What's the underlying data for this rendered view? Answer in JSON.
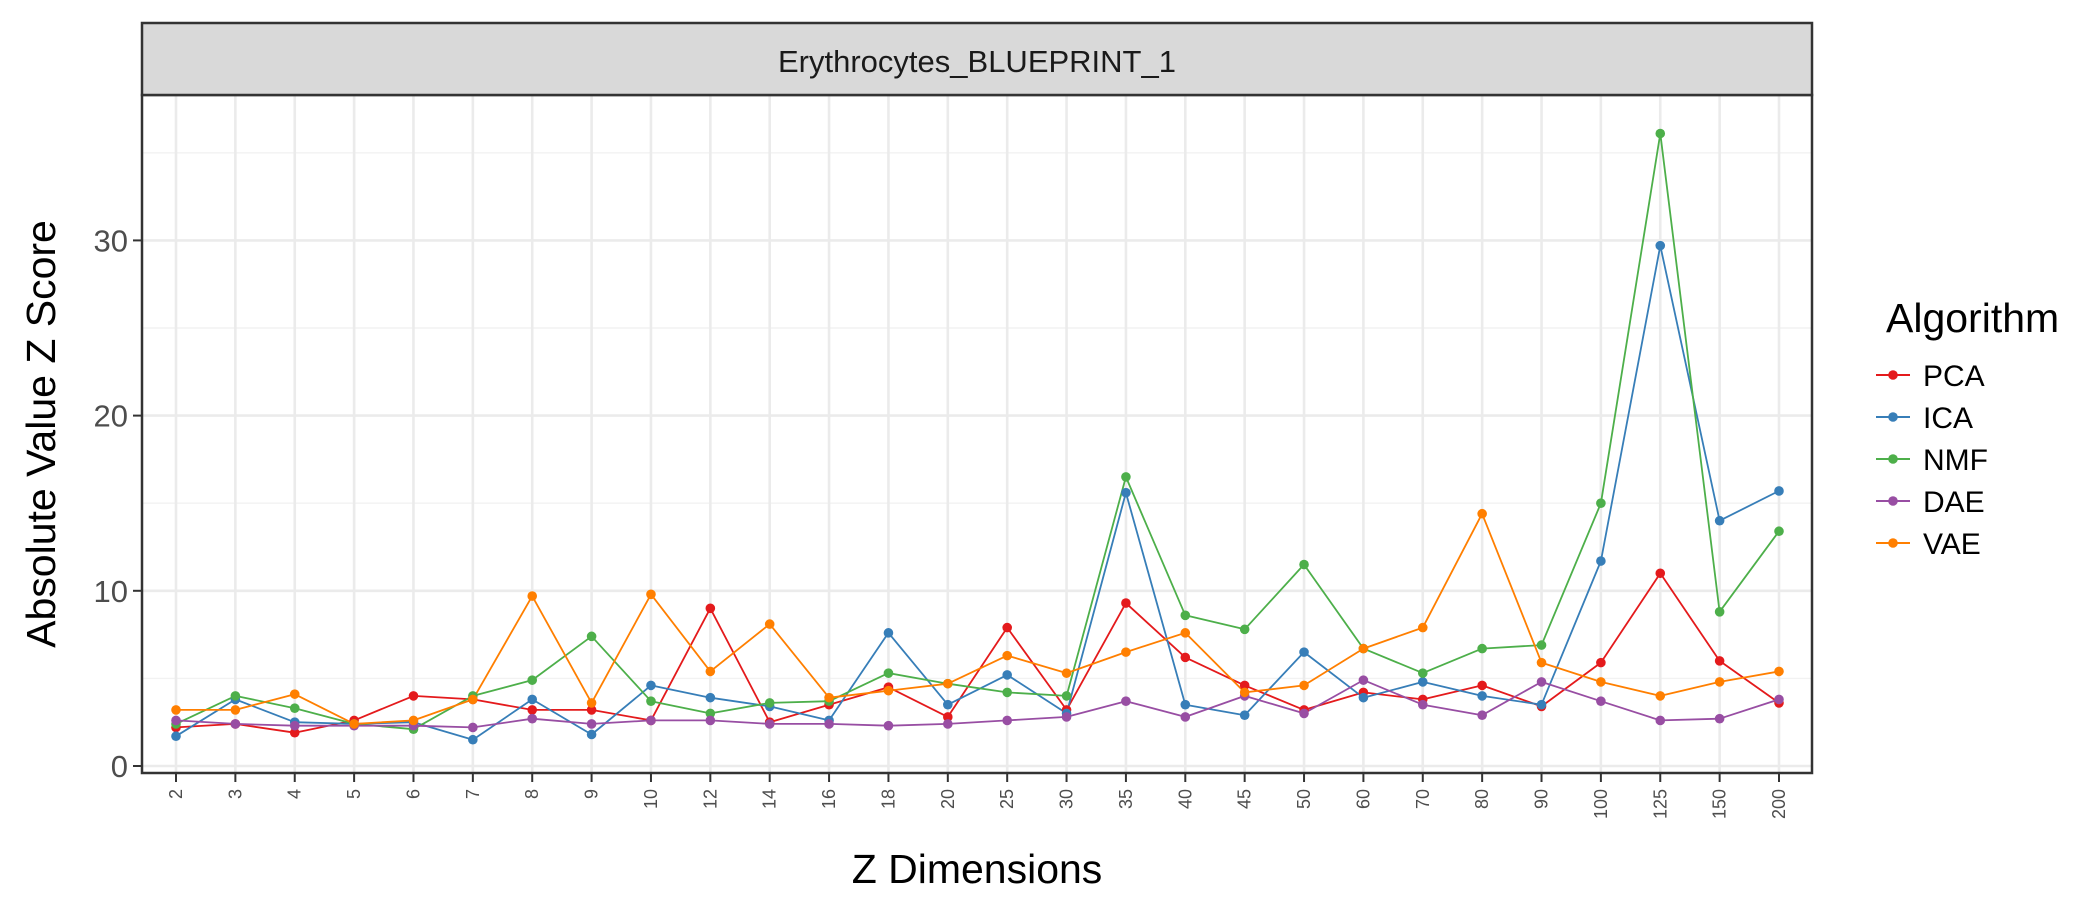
{
  "chart_data": {
    "type": "line",
    "title": "Erythrocytes_BLUEPRINT_1",
    "xlabel": "Z Dimensions",
    "ylabel": "Absolute Value Z Score",
    "categories": [
      "2",
      "3",
      "4",
      "5",
      "6",
      "7",
      "8",
      "9",
      "10",
      "12",
      "14",
      "16",
      "18",
      "20",
      "25",
      "30",
      "35",
      "40",
      "45",
      "50",
      "60",
      "70",
      "80",
      "90",
      "100",
      "125",
      "150",
      "200"
    ],
    "ylim": [
      -0.4,
      38.3
    ],
    "yticks": [
      0,
      10,
      20,
      30
    ],
    "grid": true,
    "legend": {
      "title": "Algorithm",
      "placement": "right"
    },
    "series": [
      {
        "name": "PCA",
        "color": "#E41A1C",
        "values": [
          2.2,
          2.4,
          1.9,
          2.6,
          4.0,
          3.8,
          3.2,
          3.2,
          2.6,
          9.0,
          2.5,
          3.5,
          4.5,
          2.8,
          7.9,
          3.2,
          9.3,
          6.2,
          4.6,
          3.2,
          4.2,
          3.8,
          4.6,
          3.4,
          5.9,
          11.0,
          6.0,
          3.6
        ]
      },
      {
        "name": "ICA",
        "color": "#377EB8",
        "values": [
          1.7,
          3.8,
          2.5,
          2.4,
          2.5,
          1.5,
          3.8,
          1.8,
          4.6,
          3.9,
          3.4,
          2.6,
          7.6,
          3.5,
          5.2,
          3.0,
          15.6,
          3.5,
          2.9,
          6.5,
          3.9,
          4.8,
          4.0,
          3.5,
          11.7,
          29.7,
          14.0,
          15.7
        ]
      },
      {
        "name": "NMF",
        "color": "#4DAF4A",
        "values": [
          2.4,
          4.0,
          3.3,
          2.4,
          2.1,
          4.0,
          4.9,
          7.4,
          3.7,
          3.0,
          3.6,
          3.7,
          5.3,
          4.7,
          4.2,
          4.0,
          16.5,
          8.6,
          7.8,
          11.5,
          6.7,
          5.3,
          6.7,
          6.9,
          15.0,
          36.1,
          8.8,
          13.4
        ]
      },
      {
        "name": "DAE",
        "color": "#984EA3",
        "values": [
          2.6,
          2.4,
          2.3,
          2.3,
          2.3,
          2.2,
          2.7,
          2.4,
          2.6,
          2.6,
          2.4,
          2.4,
          2.3,
          2.4,
          2.6,
          2.8,
          3.7,
          2.8,
          4.0,
          3.0,
          4.9,
          3.5,
          2.9,
          4.8,
          3.7,
          2.6,
          2.7,
          3.8
        ]
      },
      {
        "name": "VAE",
        "color": "#FF7F00",
        "values": [
          3.2,
          3.2,
          4.1,
          2.4,
          2.6,
          3.8,
          9.7,
          3.6,
          9.8,
          5.4,
          8.1,
          3.9,
          4.3,
          4.7,
          6.3,
          5.3,
          6.5,
          7.6,
          4.2,
          4.6,
          6.7,
          7.9,
          14.4,
          5.9,
          4.8,
          4.0,
          4.8,
          5.4
        ]
      }
    ]
  }
}
